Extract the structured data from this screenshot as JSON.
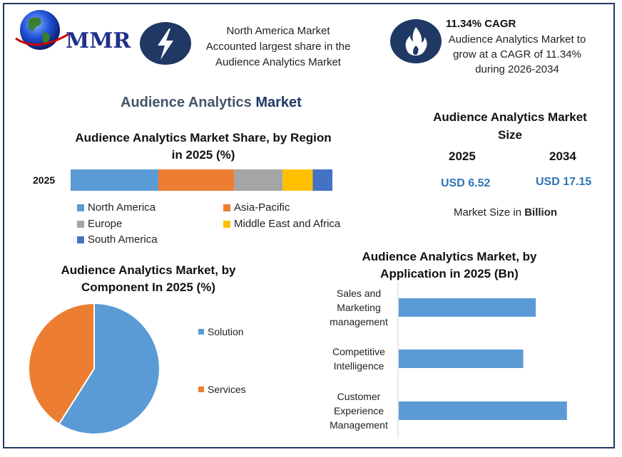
{
  "logo": {
    "text": "MMR"
  },
  "highlights": [
    {
      "icon": "lightning-icon",
      "text": [
        "North America Market",
        "Accounted largest share in the",
        "Audience Analytics Market"
      ]
    },
    {
      "icon": "flame-icon",
      "title": "11.34% CAGR",
      "text": [
        "Audience Analytics Market to",
        "grow at a CAGR of 11.34%",
        "during 2026-2034"
      ]
    }
  ],
  "main_title": {
    "part1": "Audience Analytics ",
    "part2": "Market"
  },
  "market_size": {
    "title": [
      "Audience Analytics Market",
      "Size"
    ],
    "years": [
      "2025",
      "2034"
    ],
    "values": [
      "USD 6.52",
      "USD 17.15"
    ],
    "note_prefix": "Market Size in ",
    "note_bold": "Billion"
  },
  "colors": {
    "frame": "#1f3864",
    "icon_circle": "#1f3864",
    "north_america": "#5b9bd5",
    "asia_pacific": "#ed7d31",
    "europe": "#a5a5a5",
    "mea": "#ffc000",
    "south_america": "#4472c4",
    "size_value": "#2e75b6"
  },
  "chart_data": [
    {
      "type": "bar",
      "orientation": "horizontal-stacked",
      "title": [
        "Audience Analytics Market Share, by Region",
        "in 2025 (%)"
      ],
      "categories": [
        "2025"
      ],
      "series": [
        {
          "name": "North America",
          "values": [
            33.5
          ],
          "color": "#5b9bd5"
        },
        {
          "name": "Asia-Pacific",
          "values": [
            29.0
          ],
          "color": "#ed7d31"
        },
        {
          "name": "Europe",
          "values": [
            18.5
          ],
          "color": "#a5a5a5"
        },
        {
          "name": "Middle East and Africa",
          "values": [
            11.5
          ],
          "color": "#ffc000"
        },
        {
          "name": "South America",
          "values": [
            7.5
          ],
          "color": "#4472c4"
        }
      ],
      "xlim": [
        0,
        100
      ]
    },
    {
      "type": "pie",
      "title": [
        "Audience Analytics Market, by",
        "Component In 2025 (%)"
      ],
      "categories": [
        "Solution",
        "Services"
      ],
      "values": [
        59,
        41
      ],
      "colors": [
        "#5b9bd5",
        "#ed7d31"
      ],
      "legend": "right"
    },
    {
      "type": "bar",
      "orientation": "horizontal",
      "title": [
        "Audience Analytics Market, by",
        "Application in 2025 (Bn)"
      ],
      "categories": [
        [
          "Sales and",
          "Marketing",
          "management"
        ],
        [
          "Competitive",
          "Intelligence"
        ],
        [
          "Customer",
          "Experience",
          "Management"
        ]
      ],
      "values": [
        2.2,
        2.0,
        2.7
      ],
      "xlim": [
        0,
        3.0
      ],
      "color": "#5b9bd5"
    }
  ]
}
